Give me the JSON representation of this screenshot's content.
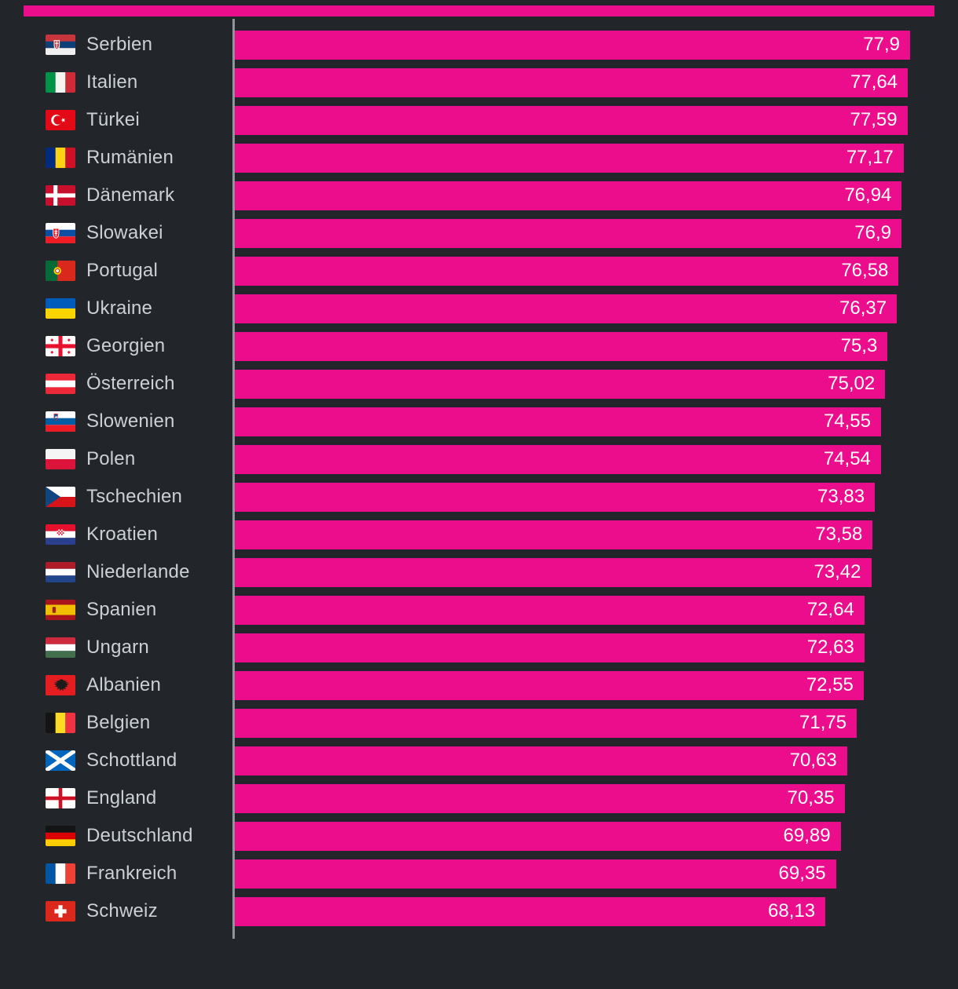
{
  "chart_data": {
    "type": "bar",
    "orientation": "horizontal",
    "title": "",
    "xlabel": "",
    "ylabel": "",
    "xlim": [
      0,
      77.9
    ],
    "grid": false,
    "legend": "none",
    "value_labels_position": "inside-end",
    "bar_color": "#eb0d8c",
    "background": "#22262b",
    "axis_color": "#909599",
    "label_color": "#cbd0d4",
    "value_color": "#ffffff",
    "categories": [
      "Serbien",
      "Italien",
      "Türkei",
      "Rumänien",
      "Dänemark",
      "Slowakei",
      "Portugal",
      "Ukraine",
      "Georgien",
      "Österreich",
      "Slowenien",
      "Polen",
      "Tschechien",
      "Kroatien",
      "Niederlande",
      "Spanien",
      "Ungarn",
      "Albanien",
      "Belgien",
      "Schottland",
      "England",
      "Deutschland",
      "Frankreich",
      "Schweiz"
    ],
    "values": [
      77.9,
      77.64,
      77.59,
      77.17,
      76.94,
      76.9,
      76.58,
      76.37,
      75.3,
      75.02,
      74.55,
      74.54,
      73.83,
      73.58,
      73.42,
      72.64,
      72.63,
      72.55,
      71.75,
      70.63,
      70.35,
      69.89,
      69.35,
      68.13
    ],
    "value_labels": [
      "77,9",
      "77,64",
      "77,59",
      "77,17",
      "76,94",
      "76,9",
      "76,58",
      "76,37",
      "75,3",
      "75,02",
      "74,55",
      "74,54",
      "73,83",
      "73,58",
      "73,42",
      "72,64",
      "72,63",
      "72,55",
      "71,75",
      "70,63",
      "70,35",
      "69,89",
      "69,35",
      "68,13"
    ],
    "flags": [
      "rs",
      "it",
      "tr",
      "ro",
      "dk",
      "sk",
      "pt",
      "ua",
      "ge",
      "at",
      "si",
      "pl",
      "cz",
      "hr",
      "nl",
      "es",
      "hu",
      "al",
      "be",
      "gb-sct",
      "gb-eng",
      "de",
      "fr",
      "ch"
    ]
  }
}
